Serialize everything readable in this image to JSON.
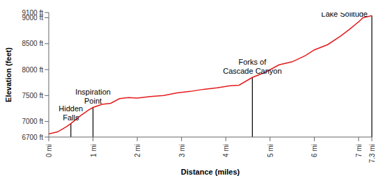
{
  "chart_data": {
    "type": "line",
    "x_label": "Distance (miles)",
    "y_label": "Elevation (feet)",
    "color": "#e31a1c",
    "x": [
      0,
      0.2,
      0.4,
      0.5,
      0.7,
      0.9,
      1.0,
      1.2,
      1.4,
      1.6,
      1.8,
      2.0,
      2.3,
      2.6,
      2.9,
      3.2,
      3.5,
      3.8,
      4.1,
      4.3,
      4.6,
      4.9,
      5.2,
      5.5,
      5.8,
      6.0,
      6.3,
      6.6,
      6.8,
      7.0,
      7.1,
      7.3
    ],
    "values": [
      6760,
      6800,
      6900,
      6960,
      7100,
      7220,
      7270,
      7330,
      7350,
      7440,
      7460,
      7450,
      7480,
      7500,
      7550,
      7580,
      7620,
      7650,
      7690,
      7700,
      7850,
      7950,
      8090,
      8150,
      8270,
      8380,
      8480,
      8650,
      8780,
      8920,
      9000,
      9040
    ],
    "xlim": [
      0,
      7.3
    ],
    "ylim": [
      6700,
      9100
    ],
    "xticks": [
      {
        "value": 0,
        "label": "0 mi"
      },
      {
        "value": 1,
        "label": "1 mi"
      },
      {
        "value": 2,
        "label": "2 mi"
      },
      {
        "value": 3,
        "label": "3 mi"
      },
      {
        "value": 4,
        "label": "4 mi"
      },
      {
        "value": 5,
        "label": "5 mi"
      },
      {
        "value": 6,
        "label": "6 mi"
      },
      {
        "value": 7,
        "label": "7 mi"
      },
      {
        "value": 7.3,
        "label": "7.3 mi"
      }
    ],
    "yticks": [
      {
        "value": 6700,
        "label": "6700 ft"
      },
      {
        "value": 7000,
        "label": "7000 ft"
      },
      {
        "value": 7500,
        "label": "7500 ft"
      },
      {
        "value": 8000,
        "label": "8000 ft"
      },
      {
        "value": 8500,
        "label": "8500 ft"
      },
      {
        "value": 9000,
        "label": "9000 ft"
      },
      {
        "value": 9100,
        "label": "9100 ft"
      }
    ],
    "grid": false,
    "annotations": [
      {
        "text": [
          "Hidden",
          "Falls"
        ],
        "x": 0.5,
        "y": 6960
      },
      {
        "text": [
          "Inspiration",
          "Point"
        ],
        "x": 1.0,
        "y": 7270
      },
      {
        "text": [
          "Forks of",
          "Cascade Canyon"
        ],
        "x": 4.6,
        "y": 7850
      },
      {
        "text": [
          "Lake Solitude"
        ],
        "x": 7.3,
        "y": 9040
      }
    ]
  }
}
